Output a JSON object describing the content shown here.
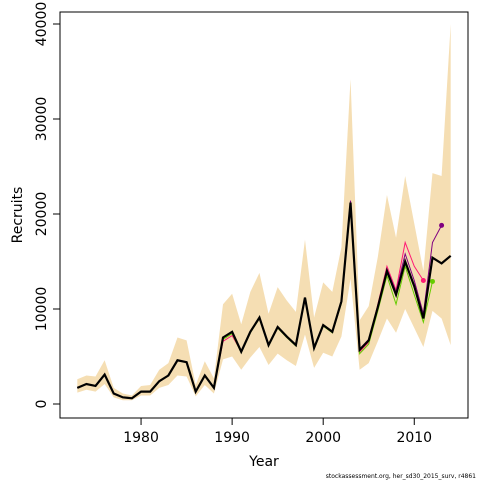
{
  "chart_data": {
    "type": "line",
    "x_label": "Year",
    "y_label": "Recruits",
    "footnote": "stockassessment.org, her_sd30_2015_surv, r4861",
    "x": [
      1973,
      1974,
      1975,
      1976,
      1977,
      1978,
      1979,
      1980,
      1981,
      1982,
      1983,
      1984,
      1985,
      1986,
      1987,
      1988,
      1989,
      1990,
      1991,
      1992,
      1993,
      1994,
      1995,
      1996,
      1997,
      1998,
      1999,
      2000,
      2001,
      2002,
      2003,
      2004,
      2005,
      2006,
      2007,
      2008,
      2009,
      2010,
      2011,
      2012,
      2013,
      2014
    ],
    "band": {
      "color": "#f5deb3",
      "upper": [
        2600,
        3000,
        2900,
        4600,
        1700,
        1100,
        900,
        1900,
        2000,
        3600,
        4300,
        7000,
        6700,
        2000,
        4500,
        2700,
        10500,
        11600,
        8400,
        11800,
        13800,
        9500,
        12300,
        10900,
        9700,
        17300,
        9100,
        12800,
        11800,
        16500,
        34200,
        8800,
        10300,
        15500,
        22000,
        17500,
        24000,
        19000,
        14000,
        24300,
        24000,
        40000
      ],
      "lower": [
        1200,
        1500,
        1300,
        2100,
        700,
        400,
        400,
        900,
        900,
        1700,
        2000,
        3000,
        2900,
        800,
        2000,
        1100,
        4700,
        5000,
        3600,
        4900,
        6000,
        4100,
        5300,
        4600,
        4000,
        7300,
        3800,
        5400,
        5000,
        7100,
        13200,
        3600,
        4300,
        6600,
        9000,
        7500,
        10000,
        8000,
        6000,
        9800,
        9000,
        6200
      ]
    },
    "series": [
      {
        "color": "#ff1a75",
        "end_marker": true,
        "values": [
          1700,
          2100,
          1900,
          3100,
          1100,
          700,
          600,
          1300,
          1300,
          2400,
          3000,
          4600,
          4400,
          1300,
          3000,
          1700,
          6600,
          7200,
          5500,
          7600,
          9100,
          6200,
          8100,
          7100,
          6200,
          11200,
          5900,
          8300,
          7600,
          10800,
          21000,
          5500,
          6500,
          10500,
          14500,
          12000,
          17000,
          14500,
          13000,
          null,
          null,
          null
        ]
      },
      {
        "color": "#66cc00",
        "end_marker": true,
        "values": [
          1700,
          2100,
          1900,
          3100,
          1100,
          700,
          600,
          1300,
          1300,
          2400,
          3000,
          4600,
          4400,
          1300,
          3000,
          1700,
          6800,
          7400,
          5400,
          7500,
          9000,
          6100,
          8000,
          7000,
          6100,
          11100,
          5800,
          8200,
          7500,
          10600,
          20800,
          5300,
          6300,
          9800,
          13500,
          10500,
          14500,
          11500,
          8600,
          12900,
          null,
          null
        ]
      },
      {
        "color": "#800080",
        "end_marker": true,
        "values": [
          1700,
          2100,
          1900,
          3100,
          1100,
          700,
          600,
          1300,
          1300,
          2400,
          3000,
          4600,
          4400,
          1300,
          3000,
          1700,
          7000,
          7600,
          5500,
          7600,
          9100,
          6200,
          8100,
          7100,
          6200,
          11200,
          5900,
          8300,
          7600,
          10800,
          21400,
          5800,
          6800,
          10300,
          14200,
          11800,
          15800,
          13000,
          9500,
          17000,
          18800,
          null
        ]
      },
      {
        "color": "#000000",
        "end_marker": false,
        "values": [
          1700,
          2100,
          1900,
          3100,
          1100,
          700,
          600,
          1300,
          1300,
          2400,
          3000,
          4600,
          4400,
          1300,
          3000,
          1700,
          7000,
          7600,
          5500,
          7600,
          9100,
          6200,
          8100,
          7100,
          6200,
          11200,
          5900,
          8300,
          7600,
          10800,
          21200,
          5700,
          6700,
          10200,
          14000,
          11500,
          15000,
          12400,
          9000,
          15400,
          14800,
          15600
        ]
      }
    ],
    "xlim": [
      1971.1,
      2015.9
    ],
    "ylim": [
      -1474,
      41263
    ],
    "xticks": [
      1980,
      1990,
      2000,
      2010
    ],
    "yticks": [
      0,
      10000,
      20000,
      30000,
      40000
    ]
  }
}
